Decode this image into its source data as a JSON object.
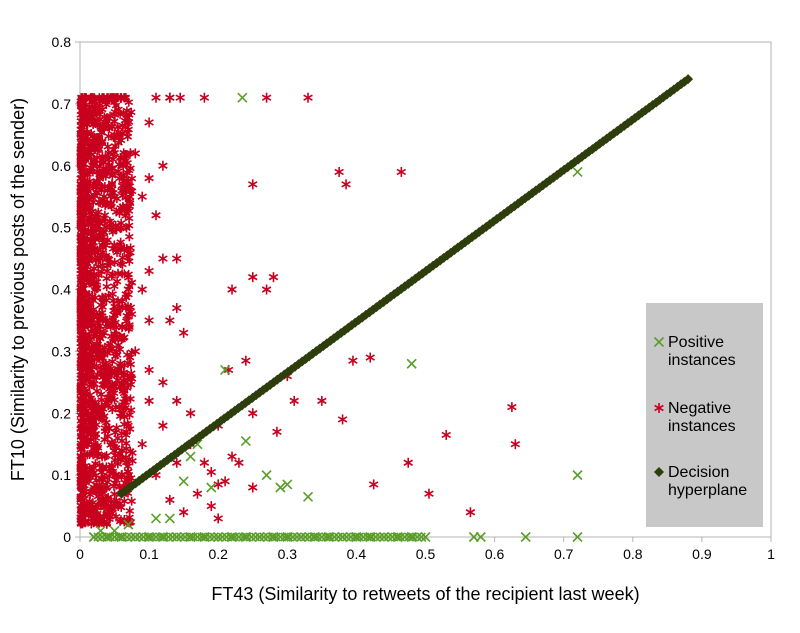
{
  "chart_data": {
    "type": "scatter",
    "xlabel": "FT43 (Similarity to retweets of the recipient last week)",
    "ylabel": "FT10 (Similarity to previous posts of the sender)",
    "xlim": [
      0,
      1
    ],
    "ylim": [
      0,
      0.8
    ],
    "x_ticks": [
      "0",
      "0.1",
      "0.2",
      "0.3",
      "0.4",
      "0.5",
      "0.6",
      "0.7",
      "0.8",
      "0.9",
      "1"
    ],
    "y_ticks": [
      "0",
      "0.1",
      "0.2",
      "0.3",
      "0.4",
      "0.5",
      "0.6",
      "0.7",
      "0.8"
    ],
    "grid": false,
    "legend_position": "right",
    "colors": {
      "positive": "#5a9e2a",
      "negative": "#c8001e",
      "hyperplane": "#2e3d0c",
      "legend_bg": "#c8c8c8"
    },
    "series": [
      {
        "name": "Positive instances",
        "marker": "x",
        "color": "#5a9e2a",
        "points": [
          [
            0.02,
            0.0
          ],
          [
            0.04,
            0.0
          ],
          [
            0.06,
            0.0
          ],
          [
            0.08,
            0.0
          ],
          [
            0.1,
            0.0
          ],
          [
            0.12,
            0.0
          ],
          [
            0.14,
            0.0
          ],
          [
            0.16,
            0.0
          ],
          [
            0.18,
            0.0
          ],
          [
            0.2,
            0.0
          ],
          [
            0.22,
            0.0
          ],
          [
            0.24,
            0.0
          ],
          [
            0.26,
            0.0
          ],
          [
            0.28,
            0.0
          ],
          [
            0.3,
            0.0
          ],
          [
            0.32,
            0.0
          ],
          [
            0.34,
            0.0
          ],
          [
            0.36,
            0.0
          ],
          [
            0.38,
            0.0
          ],
          [
            0.4,
            0.0
          ],
          [
            0.42,
            0.0
          ],
          [
            0.44,
            0.0
          ],
          [
            0.46,
            0.0
          ],
          [
            0.48,
            0.0
          ],
          [
            0.5,
            0.0
          ],
          [
            0.57,
            0.0
          ],
          [
            0.58,
            0.0
          ],
          [
            0.645,
            0.0
          ],
          [
            0.72,
            0.0
          ],
          [
            0.03,
            0.01
          ],
          [
            0.05,
            0.01
          ],
          [
            0.07,
            0.02
          ],
          [
            0.11,
            0.03
          ],
          [
            0.13,
            0.03
          ],
          [
            0.15,
            0.09
          ],
          [
            0.16,
            0.13
          ],
          [
            0.17,
            0.15
          ],
          [
            0.19,
            0.08
          ],
          [
            0.21,
            0.27
          ],
          [
            0.235,
            0.71
          ],
          [
            0.24,
            0.155
          ],
          [
            0.27,
            0.1
          ],
          [
            0.29,
            0.08
          ],
          [
            0.3,
            0.085
          ],
          [
            0.33,
            0.065
          ],
          [
            0.48,
            0.28
          ],
          [
            0.72,
            0.59
          ],
          [
            0.72,
            0.1
          ]
        ]
      },
      {
        "name": "Negative instances",
        "marker": "asterisk",
        "color": "#c8001e",
        "points": [
          [
            0.11,
            0.71
          ],
          [
            0.13,
            0.71
          ],
          [
            0.145,
            0.71
          ],
          [
            0.18,
            0.71
          ],
          [
            0.27,
            0.71
          ],
          [
            0.33,
            0.71
          ],
          [
            0.13,
            0.71
          ],
          [
            0.12,
            0.6
          ],
          [
            0.1,
            0.67
          ],
          [
            0.08,
            0.62
          ],
          [
            0.09,
            0.55
          ],
          [
            0.11,
            0.52
          ],
          [
            0.1,
            0.43
          ],
          [
            0.12,
            0.45
          ],
          [
            0.14,
            0.45
          ],
          [
            0.13,
            0.35
          ],
          [
            0.14,
            0.37
          ],
          [
            0.1,
            0.35
          ],
          [
            0.1,
            0.27
          ],
          [
            0.12,
            0.25
          ],
          [
            0.14,
            0.22
          ],
          [
            0.1,
            0.22
          ],
          [
            0.16,
            0.15
          ],
          [
            0.18,
            0.12
          ],
          [
            0.2,
            0.18
          ],
          [
            0.22,
            0.4
          ],
          [
            0.25,
            0.42
          ],
          [
            0.27,
            0.4
          ],
          [
            0.28,
            0.42
          ],
          [
            0.25,
            0.57
          ],
          [
            0.215,
            0.27
          ],
          [
            0.24,
            0.285
          ],
          [
            0.3,
            0.26
          ],
          [
            0.31,
            0.22
          ],
          [
            0.285,
            0.17
          ],
          [
            0.25,
            0.2
          ],
          [
            0.22,
            0.13
          ],
          [
            0.2,
            0.085
          ],
          [
            0.19,
            0.105
          ],
          [
            0.2,
            0.03
          ],
          [
            0.375,
            0.59
          ],
          [
            0.385,
            0.57
          ],
          [
            0.465,
            0.59
          ],
          [
            0.395,
            0.285
          ],
          [
            0.42,
            0.29
          ],
          [
            0.475,
            0.12
          ],
          [
            0.425,
            0.085
          ],
          [
            0.505,
            0.07
          ],
          [
            0.53,
            0.165
          ],
          [
            0.565,
            0.04
          ],
          [
            0.625,
            0.21
          ],
          [
            0.63,
            0.15
          ],
          [
            0.35,
            0.22
          ],
          [
            0.38,
            0.19
          ],
          [
            0.15,
            0.33
          ],
          [
            0.06,
            0.5
          ],
          [
            0.07,
            0.4
          ],
          [
            0.08,
            0.3
          ],
          [
            0.06,
            0.2
          ],
          [
            0.07,
            0.1
          ],
          [
            0.05,
            0.65
          ],
          [
            0.04,
            0.45
          ],
          [
            0.09,
            0.15
          ],
          [
            0.11,
            0.1
          ],
          [
            0.13,
            0.06
          ],
          [
            0.15,
            0.04
          ],
          [
            0.17,
            0.07
          ],
          [
            0.19,
            0.05
          ],
          [
            0.21,
            0.09
          ],
          [
            0.23,
            0.12
          ],
          [
            0.25,
            0.08
          ],
          [
            0.12,
            0.18
          ],
          [
            0.14,
            0.12
          ],
          [
            0.16,
            0.2
          ],
          [
            0.09,
            0.4
          ],
          [
            0.1,
            0.58
          ]
        ]
      },
      {
        "name": "Decision hyperplane",
        "marker": "diamond-line",
        "color": "#2e3d0c",
        "line": [
          [
            0.06,
            0.07
          ],
          [
            0.88,
            0.74
          ]
        ]
      }
    ]
  }
}
